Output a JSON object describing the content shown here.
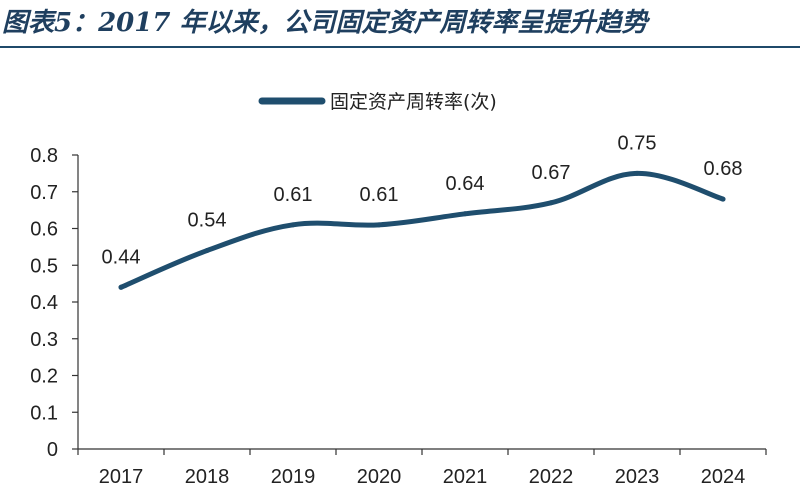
{
  "title": "图表5：2017 年以来，公司固定资产周转率呈提升趋势",
  "chart_data": {
    "type": "line",
    "title": "",
    "xlabel": "",
    "ylabel": "",
    "categories": [
      "2017",
      "2018",
      "2019",
      "2020",
      "2021",
      "2022",
      "2023",
      "2024"
    ],
    "series": [
      {
        "name": "固定资产周转率(次)",
        "values": [
          0.44,
          0.54,
          0.61,
          0.61,
          0.64,
          0.67,
          0.75,
          0.68
        ]
      }
    ],
    "data_labels": [
      "0.44",
      "0.54",
      "0.61",
      "0.61",
      "0.64",
      "0.67",
      "0.75",
      "0.68"
    ],
    "ylim": [
      0,
      0.8
    ],
    "yticks": [
      "0",
      "0.1",
      "0.2",
      "0.3",
      "0.4",
      "0.5",
      "0.6",
      "0.7",
      "0.8"
    ],
    "grid": false,
    "legend_position": "top-center",
    "line_color": "#1f4e6e"
  }
}
